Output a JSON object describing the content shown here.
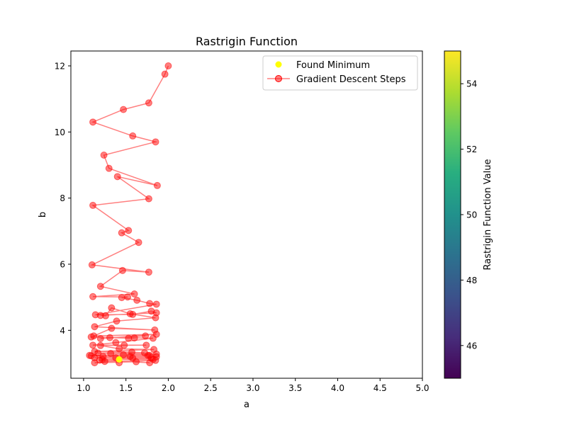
{
  "chart_data": {
    "type": "scatter",
    "title": "Rastrigin Function",
    "xlabel": "a",
    "ylabel": "b",
    "xlim": [
      0.85,
      5.0
    ],
    "ylim": [
      2.55,
      12.45
    ],
    "xticks": [
      "1.0",
      "1.5",
      "2.0",
      "2.5",
      "3.0",
      "3.5",
      "4.0",
      "4.5",
      "5.0"
    ],
    "yticks": [
      "4",
      "6",
      "8",
      "10",
      "12"
    ],
    "grid": false,
    "legend": {
      "placement": "top-right",
      "entries": [
        "Found Minimum",
        "Gradient Descent Steps"
      ]
    },
    "colorbar": {
      "label": "Rastrigin Function Value",
      "range": [
        45,
        55
      ],
      "ticks": [
        "46",
        "48",
        "50",
        "52",
        "54"
      ],
      "colormap": "viridis"
    },
    "colors": {
      "steps": "#ff0000",
      "minimum": "#ffff00"
    },
    "series": [
      {
        "name": "Gradient Descent Steps",
        "x": [
          2.0,
          1.96,
          1.77,
          1.47,
          1.11,
          1.58,
          1.85,
          1.24,
          1.3,
          1.87,
          1.4,
          1.77,
          1.11,
          1.53,
          1.45,
          1.65,
          1.1,
          1.77,
          1.46,
          1.2,
          1.6,
          1.11,
          1.52,
          1.45,
          1.63,
          1.78,
          1.86,
          1.14,
          1.58,
          1.8,
          1.86,
          1.2,
          1.26,
          1.33,
          1.55,
          1.85,
          1.39,
          1.13,
          1.84,
          1.33,
          1.12,
          1.86,
          1.2,
          1.73,
          1.31,
          1.53,
          1.6,
          1.09,
          1.82,
          1.38,
          1.11,
          1.48,
          1.74,
          1.2,
          1.42,
          1.83,
          1.13,
          1.57,
          1.72,
          1.17,
          1.32,
          1.86,
          1.07,
          1.78,
          1.23,
          1.55,
          1.86,
          1.13,
          1.38,
          1.8,
          1.58,
          1.22,
          1.82,
          1.09,
          1.47,
          1.76,
          1.25,
          1.85,
          1.13,
          1.62,
          1.78,
          1.19,
          1.42
        ],
        "y": [
          12.0,
          11.75,
          10.88,
          10.68,
          10.3,
          9.88,
          9.7,
          9.3,
          8.9,
          8.38,
          8.65,
          7.98,
          7.78,
          7.02,
          6.95,
          6.66,
          5.98,
          5.76,
          5.81,
          5.33,
          5.1,
          5.02,
          5.01,
          4.99,
          4.91,
          4.81,
          4.79,
          4.47,
          4.48,
          4.58,
          4.53,
          4.45,
          4.44,
          4.68,
          4.5,
          4.38,
          4.28,
          4.11,
          4.01,
          4.06,
          3.83,
          3.88,
          3.75,
          3.83,
          3.78,
          3.76,
          3.77,
          3.8,
          3.76,
          3.63,
          3.55,
          3.55,
          3.55,
          3.54,
          3.44,
          3.42,
          3.36,
          3.34,
          3.32,
          3.31,
          3.3,
          3.28,
          3.24,
          3.24,
          3.21,
          3.21,
          3.2,
          3.17,
          3.17,
          3.16,
          3.16,
          3.12,
          3.12,
          3.23,
          3.26,
          3.24,
          3.06,
          3.09,
          3.02,
          3.05,
          3.02,
          3.1,
          3.02
        ]
      },
      {
        "name": "Found Minimum",
        "x": [
          1.42
        ],
        "y": [
          3.12
        ]
      }
    ]
  }
}
